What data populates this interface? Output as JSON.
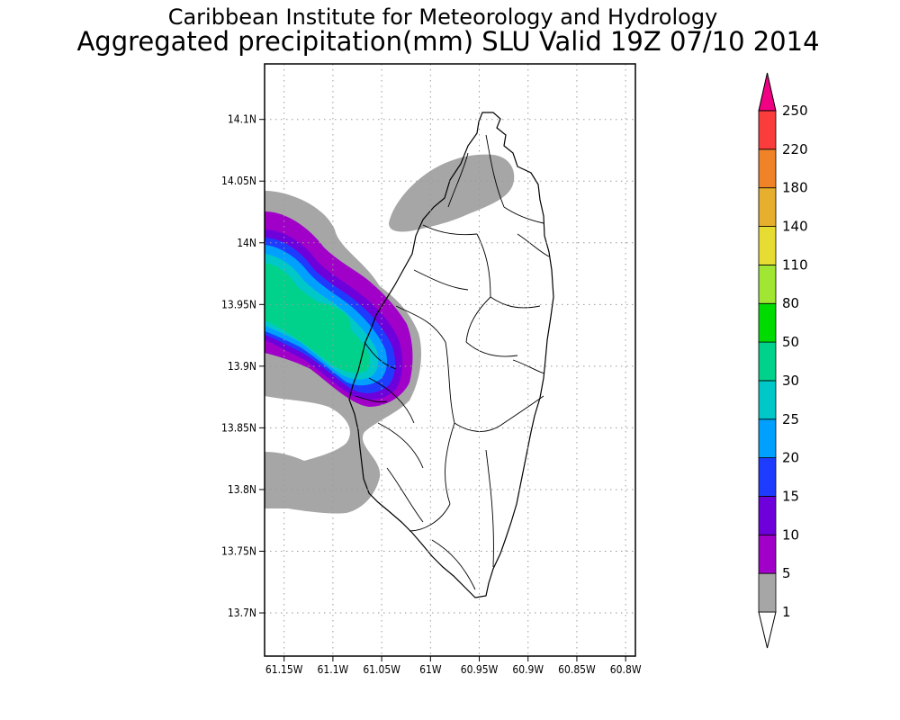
{
  "title": {
    "line1": "Caribbean Institute for Meteorology and Hydrology",
    "line2": "Aggregated precipitation(mm) SLU Valid 19Z 07/10 2014"
  },
  "map": {
    "region": "Saint Lucia",
    "lon_range": [
      -61.17,
      -60.79
    ],
    "lat_range": [
      13.665,
      14.145
    ],
    "grid": "dotted"
  },
  "axes": {
    "x_ticks": [
      {
        "lon": -61.15,
        "label": "61.15W"
      },
      {
        "lon": -61.1,
        "label": "61.1W"
      },
      {
        "lon": -61.05,
        "label": "61.05W"
      },
      {
        "lon": -61.0,
        "label": "61W"
      },
      {
        "lon": -60.95,
        "label": "60.95W"
      },
      {
        "lon": -60.9,
        "label": "60.9W"
      },
      {
        "lon": -60.85,
        "label": "60.85W"
      },
      {
        "lon": -60.8,
        "label": "60.8W"
      }
    ],
    "y_ticks": [
      {
        "lat": 14.1,
        "label": "14.1N"
      },
      {
        "lat": 14.05,
        "label": "14.05N"
      },
      {
        "lat": 14.0,
        "label": "14N"
      },
      {
        "lat": 13.95,
        "label": "13.95N"
      },
      {
        "lat": 13.9,
        "label": "13.9N"
      },
      {
        "lat": 13.85,
        "label": "13.85N"
      },
      {
        "lat": 13.8,
        "label": "13.8N"
      },
      {
        "lat": 13.75,
        "label": "13.75N"
      },
      {
        "lat": 13.7,
        "label": "13.7N"
      }
    ]
  },
  "colorbar": {
    "levels": [
      "1",
      "5",
      "10",
      "15",
      "20",
      "25",
      "30",
      "50",
      "80",
      "110",
      "140",
      "180",
      "220",
      "250"
    ],
    "colors": [
      "#a6a6a6",
      "#a000c8",
      "#6e00dc",
      "#1e3cff",
      "#00a0ff",
      "#00c8c8",
      "#00d28c",
      "#00dc00",
      "#a0e632",
      "#e6dc32",
      "#e6af2d",
      "#f08228",
      "#fa3c3c",
      "#f00082"
    ],
    "min_arrow_color": "#ffffff"
  },
  "chart_data": {
    "type": "heatmap",
    "variable": "Aggregated precipitation(mm)",
    "zones": [
      {
        "level": "1-5 mm",
        "area": "north-west coast near 14.05N 61.0W-60.95W"
      },
      {
        "level": "1-5 mm",
        "area": "west of island 13.80N-14.03N, 61.17W-61.02W"
      },
      {
        "level": "5-15 mm",
        "area": "band 13.87N-14.0N, 61.17W-61.03W"
      },
      {
        "level": "15-25 mm",
        "area": "band 13.88N-13.99N, 61.17W-61.04W"
      },
      {
        "level": "30-50 mm",
        "area": "core near 13.93N 61.1W"
      }
    ]
  }
}
